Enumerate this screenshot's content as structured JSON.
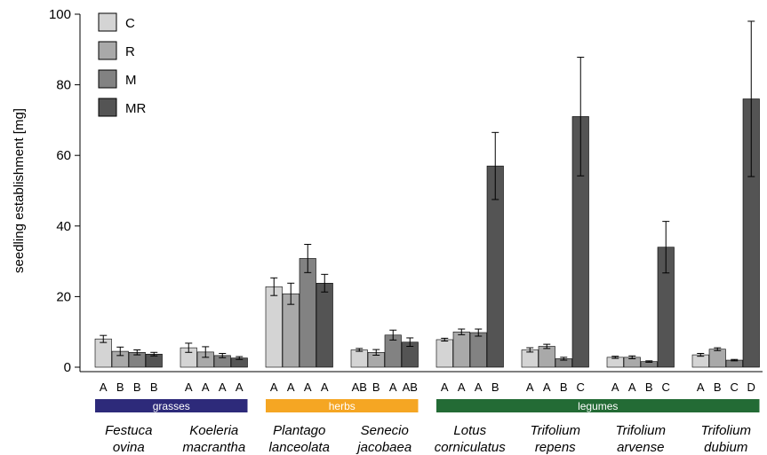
{
  "chart_data": {
    "type": "bar",
    "ylabel": "seedling establishment [mg]",
    "ylim": [
      0,
      100
    ],
    "yticks": [
      0,
      20,
      40,
      60,
      80,
      100
    ],
    "grid": false,
    "legend_position": "top-left",
    "series": [
      {
        "name": "C",
        "color": "#d4d4d4"
      },
      {
        "name": "R",
        "color": "#a9a9a9"
      },
      {
        "name": "M",
        "color": "#828282"
      },
      {
        "name": "MR",
        "color": "#545454"
      }
    ],
    "categories": [
      {
        "name": [
          "Festuca",
          "ovina"
        ],
        "values": [
          8.0,
          4.5,
          4.2,
          3.7
        ],
        "errors": [
          1.0,
          1.2,
          0.7,
          0.5
        ],
        "letters": [
          "A",
          "B",
          "B",
          "B"
        ]
      },
      {
        "name": [
          "Koeleria",
          "macrantha"
        ],
        "values": [
          5.5,
          4.3,
          3.3,
          2.6
        ],
        "errors": [
          1.3,
          1.5,
          0.6,
          0.4
        ],
        "letters": [
          "A",
          "A",
          "A",
          "A"
        ]
      },
      {
        "name": [
          "Plantago",
          "lanceolata"
        ],
        "values": [
          22.8,
          20.8,
          30.8,
          23.8
        ],
        "errors": [
          2.5,
          3.0,
          4.0,
          2.5
        ],
        "letters": [
          "A",
          "A",
          "A",
          "A"
        ]
      },
      {
        "name": [
          "Senecio",
          "jacobaea"
        ],
        "values": [
          4.9,
          4.2,
          9.1,
          7.1
        ],
        "errors": [
          0.4,
          0.8,
          1.4,
          1.2
        ],
        "letters": [
          "AB",
          "B",
          "A",
          "AB"
        ]
      },
      {
        "name": [
          "Lotus",
          "corniculatus"
        ],
        "values": [
          7.8,
          10.0,
          9.8,
          57.0
        ],
        "errors": [
          0.4,
          0.8,
          1.0,
          9.5
        ],
        "letters": [
          "A",
          "A",
          "A",
          "B"
        ]
      },
      {
        "name": [
          "Trifolium",
          "repens"
        ],
        "values": [
          4.9,
          5.9,
          2.4,
          71.0
        ],
        "errors": [
          0.6,
          0.6,
          0.4,
          16.8
        ],
        "letters": [
          "A",
          "A",
          "B",
          "C"
        ]
      },
      {
        "name": [
          "Trifolium",
          "arvense"
        ],
        "values": [
          2.8,
          2.8,
          1.6,
          34.0
        ],
        "errors": [
          0.3,
          0.4,
          0.2,
          7.3
        ],
        "letters": [
          "A",
          "A",
          "B",
          "C"
        ]
      },
      {
        "name": [
          "Trifolium",
          "dubium"
        ],
        "values": [
          3.5,
          5.1,
          2.0,
          76.0
        ],
        "errors": [
          0.4,
          0.4,
          0.2,
          22.0
        ],
        "letters": [
          "A",
          "B",
          "C",
          "D"
        ]
      }
    ],
    "groups": [
      {
        "label": "grasses",
        "from": 0,
        "to": 1,
        "color": "#2d2a7a"
      },
      {
        "label": "herbs",
        "from": 2,
        "to": 3,
        "color": "#f5a623"
      },
      {
        "label": "legumes",
        "from": 4,
        "to": 7,
        "color": "#236b35"
      }
    ]
  }
}
